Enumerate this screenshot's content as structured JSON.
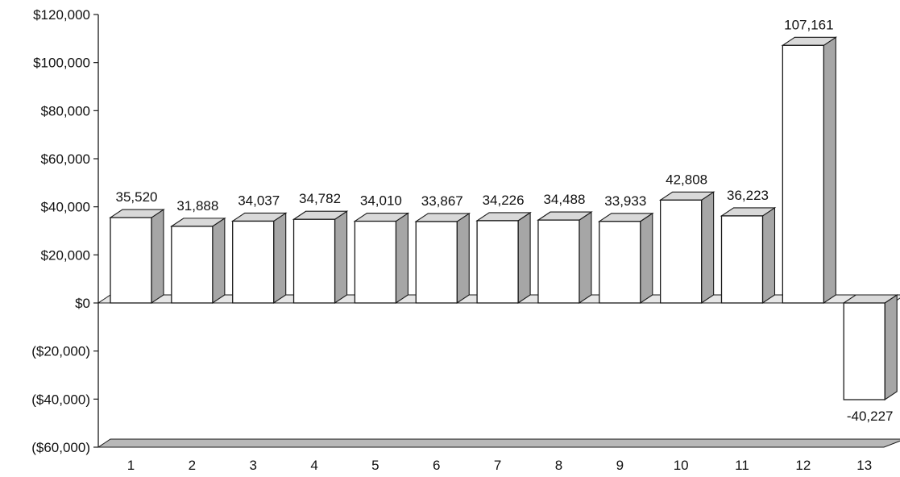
{
  "chart_data": {
    "type": "bar",
    "title": "",
    "xlabel": "",
    "ylabel": "",
    "categories": [
      "1",
      "2",
      "3",
      "4",
      "5",
      "6",
      "7",
      "8",
      "9",
      "10",
      "11",
      "12",
      "13"
    ],
    "values": [
      35520,
      31888,
      34037,
      34782,
      34010,
      33867,
      34226,
      34488,
      33933,
      42808,
      36223,
      107161,
      -40227
    ],
    "data_labels": [
      "35,520",
      "31,888",
      "34,037",
      "34,782",
      "34,010",
      "33,867",
      "34,226",
      "34,488",
      "33,933",
      "42,808",
      "36,223",
      "107,161",
      "-40,227"
    ],
    "ylim": [
      -60000,
      120000
    ],
    "y_ticks": [
      120000,
      100000,
      80000,
      60000,
      40000,
      20000,
      0,
      -20000,
      -40000,
      -60000
    ],
    "y_tick_labels": [
      "$120,000",
      "$100,000",
      "$80,000",
      "$60,000",
      "$40,000",
      "$20,000",
      "$0",
      "($20,000)",
      "($40,000)",
      "($60,000)"
    ],
    "grid": false,
    "legend": "none",
    "style": "3d-column",
    "colors": {
      "bar_front": "#ffffff",
      "bar_top": "#d9d9d9",
      "bar_side": "#a6a6a6",
      "floor": "#b8b8b8",
      "outline": "#1a1a1a"
    }
  }
}
